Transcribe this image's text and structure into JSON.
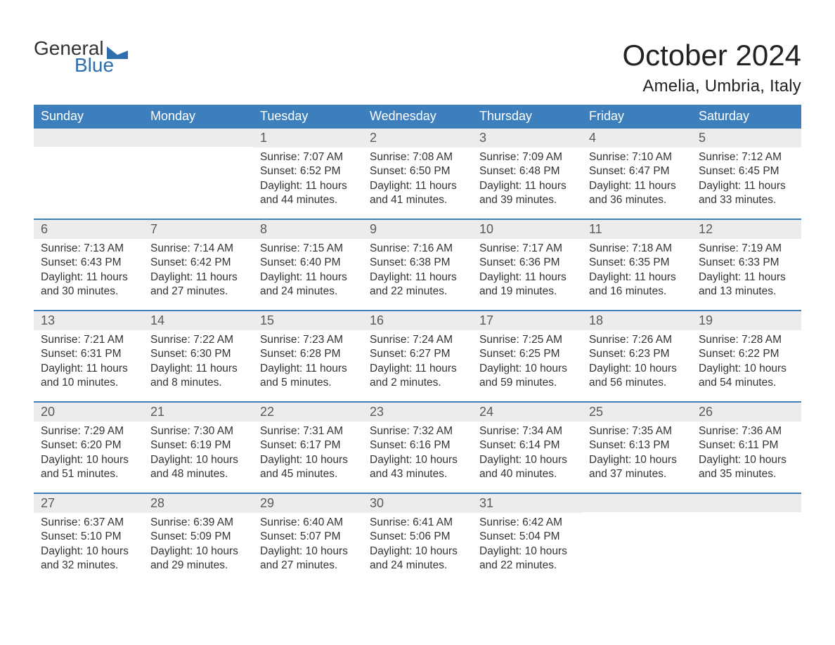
{
  "brand": {
    "text1": "General",
    "text2": "Blue"
  },
  "title": {
    "month_year": "October 2024",
    "location": "Amelia, Umbria, Italy"
  },
  "colors": {
    "header_bg": "#3d7ebd",
    "header_text": "#ffffff",
    "daynum_bg": "#ececec",
    "daynum_text": "#5a5a5a",
    "body_text": "#333333",
    "brand_blue": "#2f6fad",
    "week_divider": "#3d7ebd",
    "page_bg": "#ffffff"
  },
  "typography": {
    "title_fontsize_pt": 32,
    "location_fontsize_pt": 18,
    "header_fontsize_pt": 14,
    "daynum_fontsize_pt": 14,
    "body_fontsize_pt": 12,
    "font_family": "Arial"
  },
  "calendar": {
    "type": "table",
    "columns": 7,
    "rows": 5,
    "headers": [
      "Sunday",
      "Monday",
      "Tuesday",
      "Wednesday",
      "Thursday",
      "Friday",
      "Saturday"
    ],
    "weeks": [
      [
        null,
        null,
        {
          "n": "1",
          "sunrise": "Sunrise: 7:07 AM",
          "sunset": "Sunset: 6:52 PM",
          "d1": "Daylight: 11 hours",
          "d2": "and 44 minutes."
        },
        {
          "n": "2",
          "sunrise": "Sunrise: 7:08 AM",
          "sunset": "Sunset: 6:50 PM",
          "d1": "Daylight: 11 hours",
          "d2": "and 41 minutes."
        },
        {
          "n": "3",
          "sunrise": "Sunrise: 7:09 AM",
          "sunset": "Sunset: 6:48 PM",
          "d1": "Daylight: 11 hours",
          "d2": "and 39 minutes."
        },
        {
          "n": "4",
          "sunrise": "Sunrise: 7:10 AM",
          "sunset": "Sunset: 6:47 PM",
          "d1": "Daylight: 11 hours",
          "d2": "and 36 minutes."
        },
        {
          "n": "5",
          "sunrise": "Sunrise: 7:12 AM",
          "sunset": "Sunset: 6:45 PM",
          "d1": "Daylight: 11 hours",
          "d2": "and 33 minutes."
        }
      ],
      [
        {
          "n": "6",
          "sunrise": "Sunrise: 7:13 AM",
          "sunset": "Sunset: 6:43 PM",
          "d1": "Daylight: 11 hours",
          "d2": "and 30 minutes."
        },
        {
          "n": "7",
          "sunrise": "Sunrise: 7:14 AM",
          "sunset": "Sunset: 6:42 PM",
          "d1": "Daylight: 11 hours",
          "d2": "and 27 minutes."
        },
        {
          "n": "8",
          "sunrise": "Sunrise: 7:15 AM",
          "sunset": "Sunset: 6:40 PM",
          "d1": "Daylight: 11 hours",
          "d2": "and 24 minutes."
        },
        {
          "n": "9",
          "sunrise": "Sunrise: 7:16 AM",
          "sunset": "Sunset: 6:38 PM",
          "d1": "Daylight: 11 hours",
          "d2": "and 22 minutes."
        },
        {
          "n": "10",
          "sunrise": "Sunrise: 7:17 AM",
          "sunset": "Sunset: 6:36 PM",
          "d1": "Daylight: 11 hours",
          "d2": "and 19 minutes."
        },
        {
          "n": "11",
          "sunrise": "Sunrise: 7:18 AM",
          "sunset": "Sunset: 6:35 PM",
          "d1": "Daylight: 11 hours",
          "d2": "and 16 minutes."
        },
        {
          "n": "12",
          "sunrise": "Sunrise: 7:19 AM",
          "sunset": "Sunset: 6:33 PM",
          "d1": "Daylight: 11 hours",
          "d2": "and 13 minutes."
        }
      ],
      [
        {
          "n": "13",
          "sunrise": "Sunrise: 7:21 AM",
          "sunset": "Sunset: 6:31 PM",
          "d1": "Daylight: 11 hours",
          "d2": "and 10 minutes."
        },
        {
          "n": "14",
          "sunrise": "Sunrise: 7:22 AM",
          "sunset": "Sunset: 6:30 PM",
          "d1": "Daylight: 11 hours",
          "d2": "and 8 minutes."
        },
        {
          "n": "15",
          "sunrise": "Sunrise: 7:23 AM",
          "sunset": "Sunset: 6:28 PM",
          "d1": "Daylight: 11 hours",
          "d2": "and 5 minutes."
        },
        {
          "n": "16",
          "sunrise": "Sunrise: 7:24 AM",
          "sunset": "Sunset: 6:27 PM",
          "d1": "Daylight: 11 hours",
          "d2": "and 2 minutes."
        },
        {
          "n": "17",
          "sunrise": "Sunrise: 7:25 AM",
          "sunset": "Sunset: 6:25 PM",
          "d1": "Daylight: 10 hours",
          "d2": "and 59 minutes."
        },
        {
          "n": "18",
          "sunrise": "Sunrise: 7:26 AM",
          "sunset": "Sunset: 6:23 PM",
          "d1": "Daylight: 10 hours",
          "d2": "and 56 minutes."
        },
        {
          "n": "19",
          "sunrise": "Sunrise: 7:28 AM",
          "sunset": "Sunset: 6:22 PM",
          "d1": "Daylight: 10 hours",
          "d2": "and 54 minutes."
        }
      ],
      [
        {
          "n": "20",
          "sunrise": "Sunrise: 7:29 AM",
          "sunset": "Sunset: 6:20 PM",
          "d1": "Daylight: 10 hours",
          "d2": "and 51 minutes."
        },
        {
          "n": "21",
          "sunrise": "Sunrise: 7:30 AM",
          "sunset": "Sunset: 6:19 PM",
          "d1": "Daylight: 10 hours",
          "d2": "and 48 minutes."
        },
        {
          "n": "22",
          "sunrise": "Sunrise: 7:31 AM",
          "sunset": "Sunset: 6:17 PM",
          "d1": "Daylight: 10 hours",
          "d2": "and 45 minutes."
        },
        {
          "n": "23",
          "sunrise": "Sunrise: 7:32 AM",
          "sunset": "Sunset: 6:16 PM",
          "d1": "Daylight: 10 hours",
          "d2": "and 43 minutes."
        },
        {
          "n": "24",
          "sunrise": "Sunrise: 7:34 AM",
          "sunset": "Sunset: 6:14 PM",
          "d1": "Daylight: 10 hours",
          "d2": "and 40 minutes."
        },
        {
          "n": "25",
          "sunrise": "Sunrise: 7:35 AM",
          "sunset": "Sunset: 6:13 PM",
          "d1": "Daylight: 10 hours",
          "d2": "and 37 minutes."
        },
        {
          "n": "26",
          "sunrise": "Sunrise: 7:36 AM",
          "sunset": "Sunset: 6:11 PM",
          "d1": "Daylight: 10 hours",
          "d2": "and 35 minutes."
        }
      ],
      [
        {
          "n": "27",
          "sunrise": "Sunrise: 6:37 AM",
          "sunset": "Sunset: 5:10 PM",
          "d1": "Daylight: 10 hours",
          "d2": "and 32 minutes."
        },
        {
          "n": "28",
          "sunrise": "Sunrise: 6:39 AM",
          "sunset": "Sunset: 5:09 PM",
          "d1": "Daylight: 10 hours",
          "d2": "and 29 minutes."
        },
        {
          "n": "29",
          "sunrise": "Sunrise: 6:40 AM",
          "sunset": "Sunset: 5:07 PM",
          "d1": "Daylight: 10 hours",
          "d2": "and 27 minutes."
        },
        {
          "n": "30",
          "sunrise": "Sunrise: 6:41 AM",
          "sunset": "Sunset: 5:06 PM",
          "d1": "Daylight: 10 hours",
          "d2": "and 24 minutes."
        },
        {
          "n": "31",
          "sunrise": "Sunrise: 6:42 AM",
          "sunset": "Sunset: 5:04 PM",
          "d1": "Daylight: 10 hours",
          "d2": "and 22 minutes."
        },
        null,
        null
      ]
    ]
  }
}
